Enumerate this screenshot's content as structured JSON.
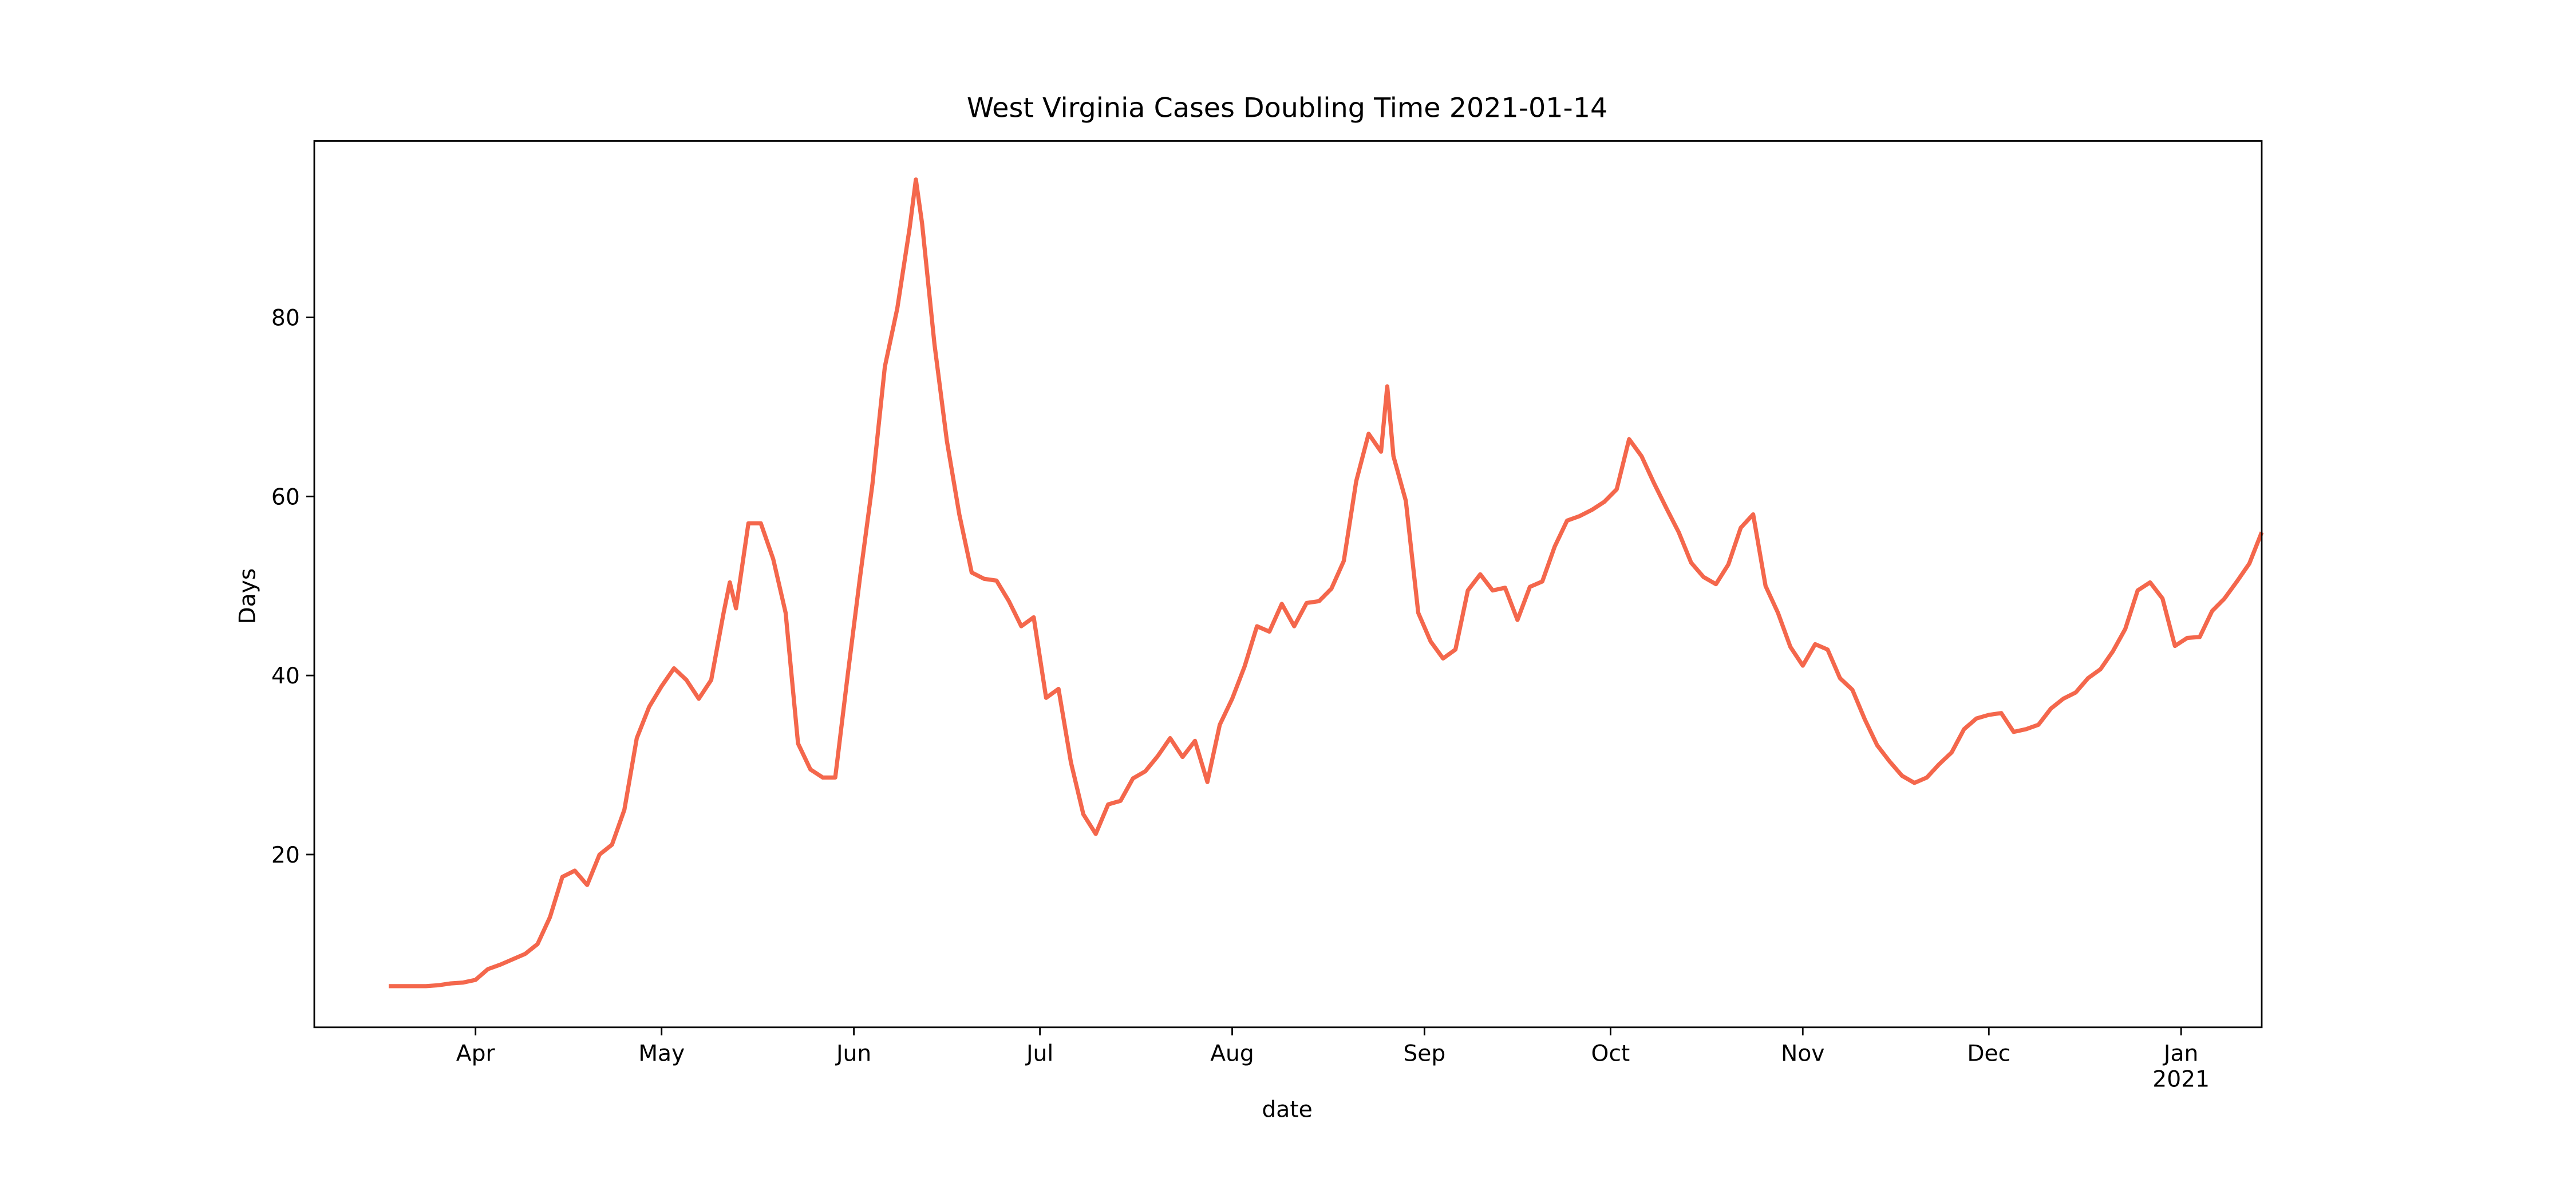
{
  "chart_data": {
    "type": "line",
    "title": "West Virginia Cases Doubling Time 2021-01-14",
    "xlabel": "date",
    "ylabel": "Days",
    "xlim": [
      "2020-03-06",
      "2021-01-14"
    ],
    "ylim": [
      0.7,
      99.7
    ],
    "yticks": [
      20,
      40,
      60,
      80
    ],
    "xticks": [
      {
        "value": "2020-04-01",
        "label": "Apr"
      },
      {
        "value": "2020-05-01",
        "label": "May"
      },
      {
        "value": "2020-06-01",
        "label": "Jun"
      },
      {
        "value": "2020-07-01",
        "label": "Jul"
      },
      {
        "value": "2020-08-01",
        "label": "Aug"
      },
      {
        "value": "2020-09-01",
        "label": "Sep"
      },
      {
        "value": "2020-10-01",
        "label": "Oct"
      },
      {
        "value": "2020-11-01",
        "label": "Nov"
      },
      {
        "value": "2020-12-01",
        "label": "Dec"
      },
      {
        "value": "2021-01-01",
        "label": "Jan\n2021"
      }
    ],
    "grid": false,
    "x": [
      "2020-03-18",
      "2020-03-20",
      "2020-03-22",
      "2020-03-24",
      "2020-03-26",
      "2020-03-28",
      "2020-03-30",
      "2020-04-01",
      "2020-04-03",
      "2020-04-05",
      "2020-04-07",
      "2020-04-09",
      "2020-04-11",
      "2020-04-13",
      "2020-04-15",
      "2020-04-17",
      "2020-04-19",
      "2020-04-21",
      "2020-04-23",
      "2020-04-25",
      "2020-04-27",
      "2020-04-29",
      "2020-05-01",
      "2020-05-03",
      "2020-05-05",
      "2020-05-07",
      "2020-05-09",
      "2020-05-11",
      "2020-05-12",
      "2020-05-13",
      "2020-05-15",
      "2020-05-17",
      "2020-05-19",
      "2020-05-21",
      "2020-05-23",
      "2020-05-25",
      "2020-05-27",
      "2020-05-29",
      "2020-05-31",
      "2020-06-02",
      "2020-06-04",
      "2020-06-06",
      "2020-06-08",
      "2020-06-10",
      "2020-06-11",
      "2020-06-12",
      "2020-06-14",
      "2020-06-16",
      "2020-06-18",
      "2020-06-20",
      "2020-06-22",
      "2020-06-24",
      "2020-06-26",
      "2020-06-28",
      "2020-06-30",
      "2020-07-02",
      "2020-07-04",
      "2020-07-06",
      "2020-07-08",
      "2020-07-10",
      "2020-07-12",
      "2020-07-14",
      "2020-07-16",
      "2020-07-18",
      "2020-07-20",
      "2020-07-22",
      "2020-07-24",
      "2020-07-26",
      "2020-07-28",
      "2020-07-30",
      "2020-08-01",
      "2020-08-03",
      "2020-08-05",
      "2020-08-07",
      "2020-08-09",
      "2020-08-11",
      "2020-08-13",
      "2020-08-15",
      "2020-08-17",
      "2020-08-19",
      "2020-08-21",
      "2020-08-23",
      "2020-08-25",
      "2020-08-26",
      "2020-08-27",
      "2020-08-29",
      "2020-08-31",
      "2020-09-02",
      "2020-09-04",
      "2020-09-06",
      "2020-09-08",
      "2020-09-10",
      "2020-09-12",
      "2020-09-14",
      "2020-09-16",
      "2020-09-18",
      "2020-09-20",
      "2020-09-22",
      "2020-09-24",
      "2020-09-26",
      "2020-09-28",
      "2020-09-30",
      "2020-10-02",
      "2020-10-04",
      "2020-10-06",
      "2020-10-08",
      "2020-10-10",
      "2020-10-12",
      "2020-10-14",
      "2020-10-16",
      "2020-10-18",
      "2020-10-20",
      "2020-10-22",
      "2020-10-24",
      "2020-10-26",
      "2020-10-28",
      "2020-10-30",
      "2020-11-01",
      "2020-11-03",
      "2020-11-05",
      "2020-11-07",
      "2020-11-09",
      "2020-11-11",
      "2020-11-13",
      "2020-11-15",
      "2020-11-17",
      "2020-11-19",
      "2020-11-21",
      "2020-11-23",
      "2020-11-25",
      "2020-11-27",
      "2020-11-29",
      "2020-12-01",
      "2020-12-03",
      "2020-12-05",
      "2020-12-07",
      "2020-12-09",
      "2020-12-11",
      "2020-12-13",
      "2020-12-15",
      "2020-12-17",
      "2020-12-19",
      "2020-12-21",
      "2020-12-23",
      "2020-12-25",
      "2020-12-27",
      "2020-12-29",
      "2020-12-31",
      "2021-01-02",
      "2021-01-04",
      "2021-01-06",
      "2021-01-08",
      "2021-01-10",
      "2021-01-12",
      "2021-01-14"
    ],
    "series": [
      {
        "name": "doubling time",
        "color": "#f4674c",
        "values": [
          5.3,
          5.3,
          5.3,
          5.3,
          5.4,
          5.6,
          5.7,
          6.0,
          7.2,
          7.7,
          8.3,
          8.9,
          10.0,
          13.0,
          17.5,
          18.2,
          16.6,
          20.0,
          21.1,
          25.0,
          33.0,
          36.5,
          38.8,
          40.8,
          39.5,
          37.4,
          39.5,
          47.0,
          50.4,
          47.5,
          57.0,
          57.0,
          53.0,
          47.0,
          32.4,
          29.5,
          28.6,
          28.6,
          40.0,
          51.0,
          61.4,
          74.5,
          81.0,
          90.0,
          95.4,
          90.5,
          77.0,
          66.2,
          58.0,
          51.5,
          50.8,
          50.6,
          48.3,
          45.5,
          46.5,
          37.5,
          38.5,
          30.3,
          24.5,
          22.3,
          25.6,
          26.0,
          28.5,
          29.3,
          31.0,
          33.0,
          30.9,
          32.7,
          28.1,
          34.5,
          37.4,
          41.0,
          45.5,
          44.9,
          48.0,
          45.5,
          48.1,
          48.3,
          49.7,
          52.8,
          61.7,
          67.0,
          65.0,
          72.3,
          64.5,
          59.5,
          47.0,
          43.8,
          41.9,
          42.9,
          49.5,
          51.3,
          49.5,
          49.8,
          46.2,
          49.9,
          50.5,
          54.4,
          57.3,
          57.8,
          58.5,
          59.4,
          60.8,
          66.4,
          64.5,
          61.5,
          58.7,
          56.0,
          52.6,
          51.0,
          50.2,
          52.4,
          56.5,
          58.0,
          50.0,
          47.0,
          43.2,
          41.1,
          43.5,
          42.9,
          39.7,
          38.4,
          35.1,
          32.2,
          30.4,
          28.8,
          28.0,
          28.6,
          30.1,
          31.4,
          34.0,
          35.2,
          35.6,
          35.8,
          33.7,
          34.0,
          34.5,
          36.3,
          37.4,
          38.1,
          39.7,
          40.7,
          42.7,
          45.2,
          49.5,
          50.4,
          48.6,
          43.3,
          44.2,
          44.3,
          47.2,
          48.6,
          50.5,
          52.5,
          56.0
        ]
      }
    ]
  }
}
